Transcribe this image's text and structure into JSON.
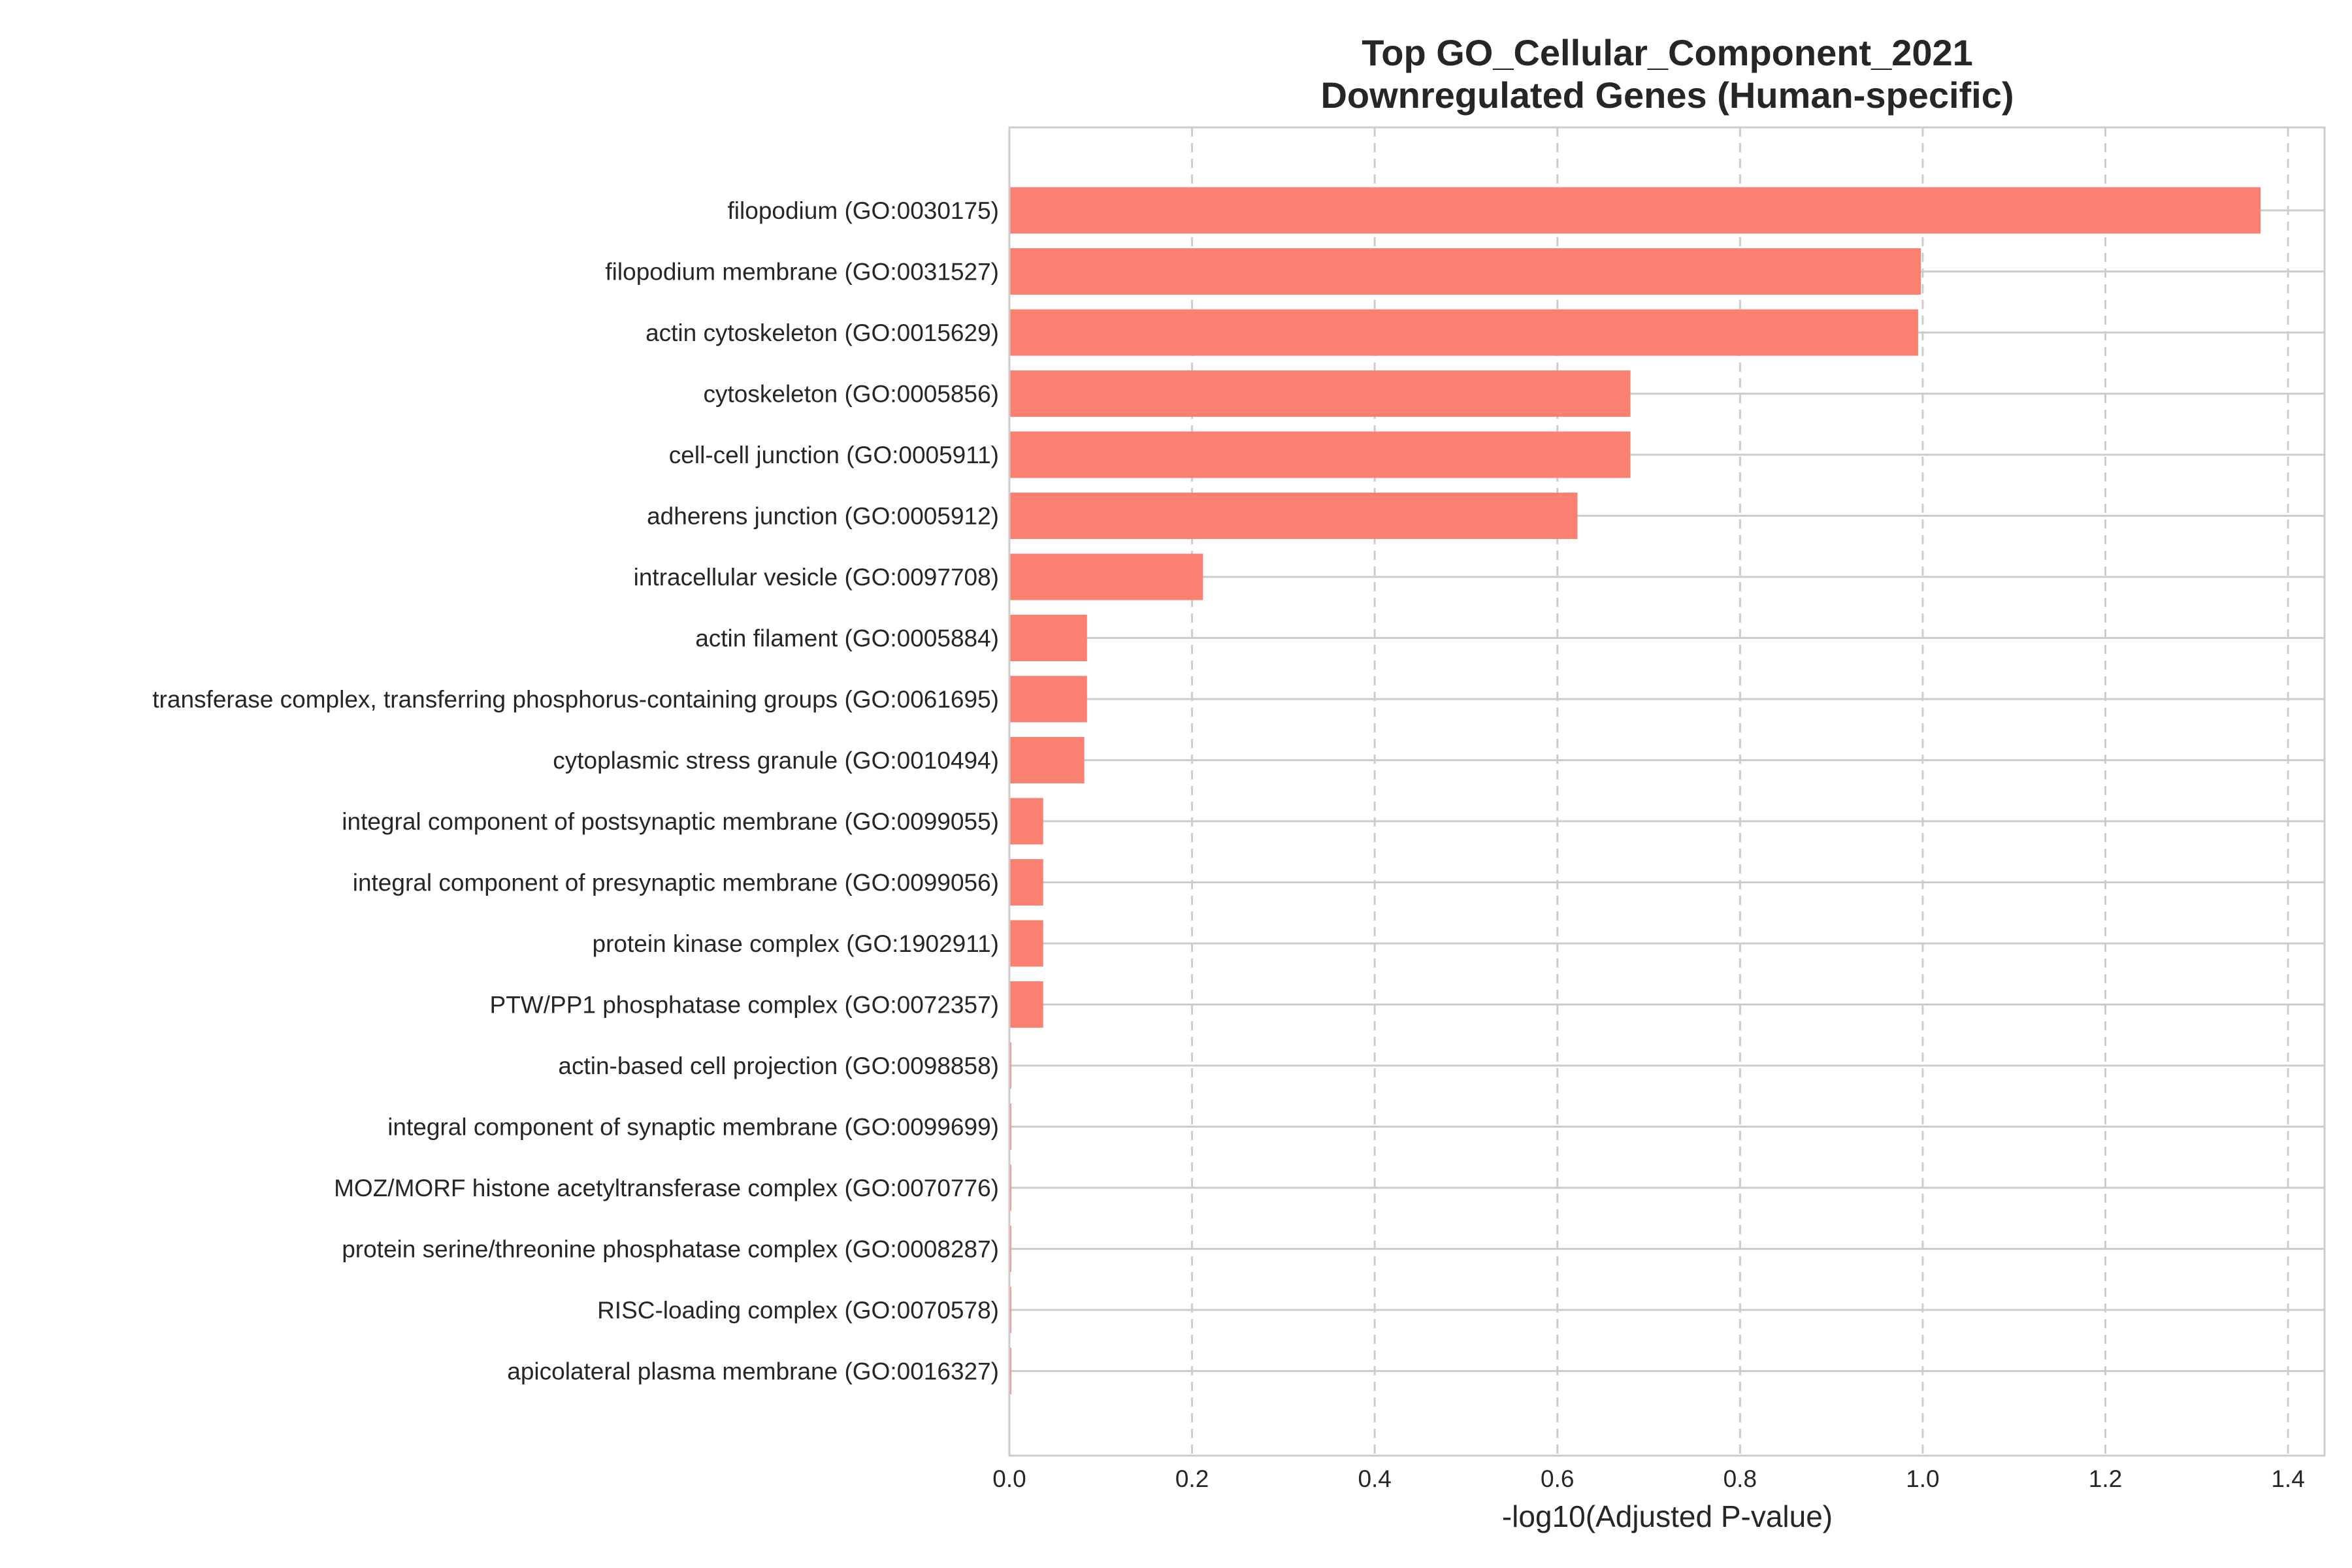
{
  "chart_data": {
    "type": "bar",
    "orientation": "horizontal",
    "title_lines": [
      "Top GO_Cellular_Component_2021",
      "Downregulated Genes (Human-specific)"
    ],
    "xlabel": "-log10(Adjusted P-value)",
    "ylabel": "",
    "xlim": [
      0,
      1.44
    ],
    "xticks": [
      "0.0",
      "0.2",
      "0.4",
      "0.6",
      "0.8",
      "1.0",
      "1.2",
      "1.4"
    ],
    "grid": true,
    "bar_color": "#fa8072",
    "categories": [
      "filopodium (GO:0030175)",
      "filopodium membrane (GO:0031527)",
      "actin cytoskeleton (GO:0015629)",
      "cytoskeleton (GO:0005856)",
      "cell-cell junction (GO:0005911)",
      "adherens junction (GO:0005912)",
      "intracellular vesicle (GO:0097708)",
      "actin filament (GO:0005884)",
      "transferase complex, transferring phosphorus-containing groups (GO:0061695)",
      "cytoplasmic stress granule (GO:0010494)",
      "integral component of postsynaptic membrane (GO:0099055)",
      "integral component of presynaptic membrane (GO:0099056)",
      "protein kinase complex (GO:1902911)",
      "PTW/PP1 phosphatase complex (GO:0072357)",
      "actin-based cell projection (GO:0098858)",
      "integral component of synaptic membrane (GO:0099699)",
      "MOZ/MORF histone acetyltransferase complex (GO:0070776)",
      "protein serine/threonine phosphatase complex (GO:0008287)",
      "RISC-loading complex (GO:0070578)",
      "apicolateral plasma membrane (GO:0016327)"
    ],
    "values": [
      1.37,
      0.998,
      0.995,
      0.68,
      0.68,
      0.622,
      0.212,
      0.085,
      0.085,
      0.082,
      0.037,
      0.037,
      0.037,
      0.037,
      0.002,
      0.002,
      0.002,
      0.002,
      0.002,
      0.002
    ]
  }
}
